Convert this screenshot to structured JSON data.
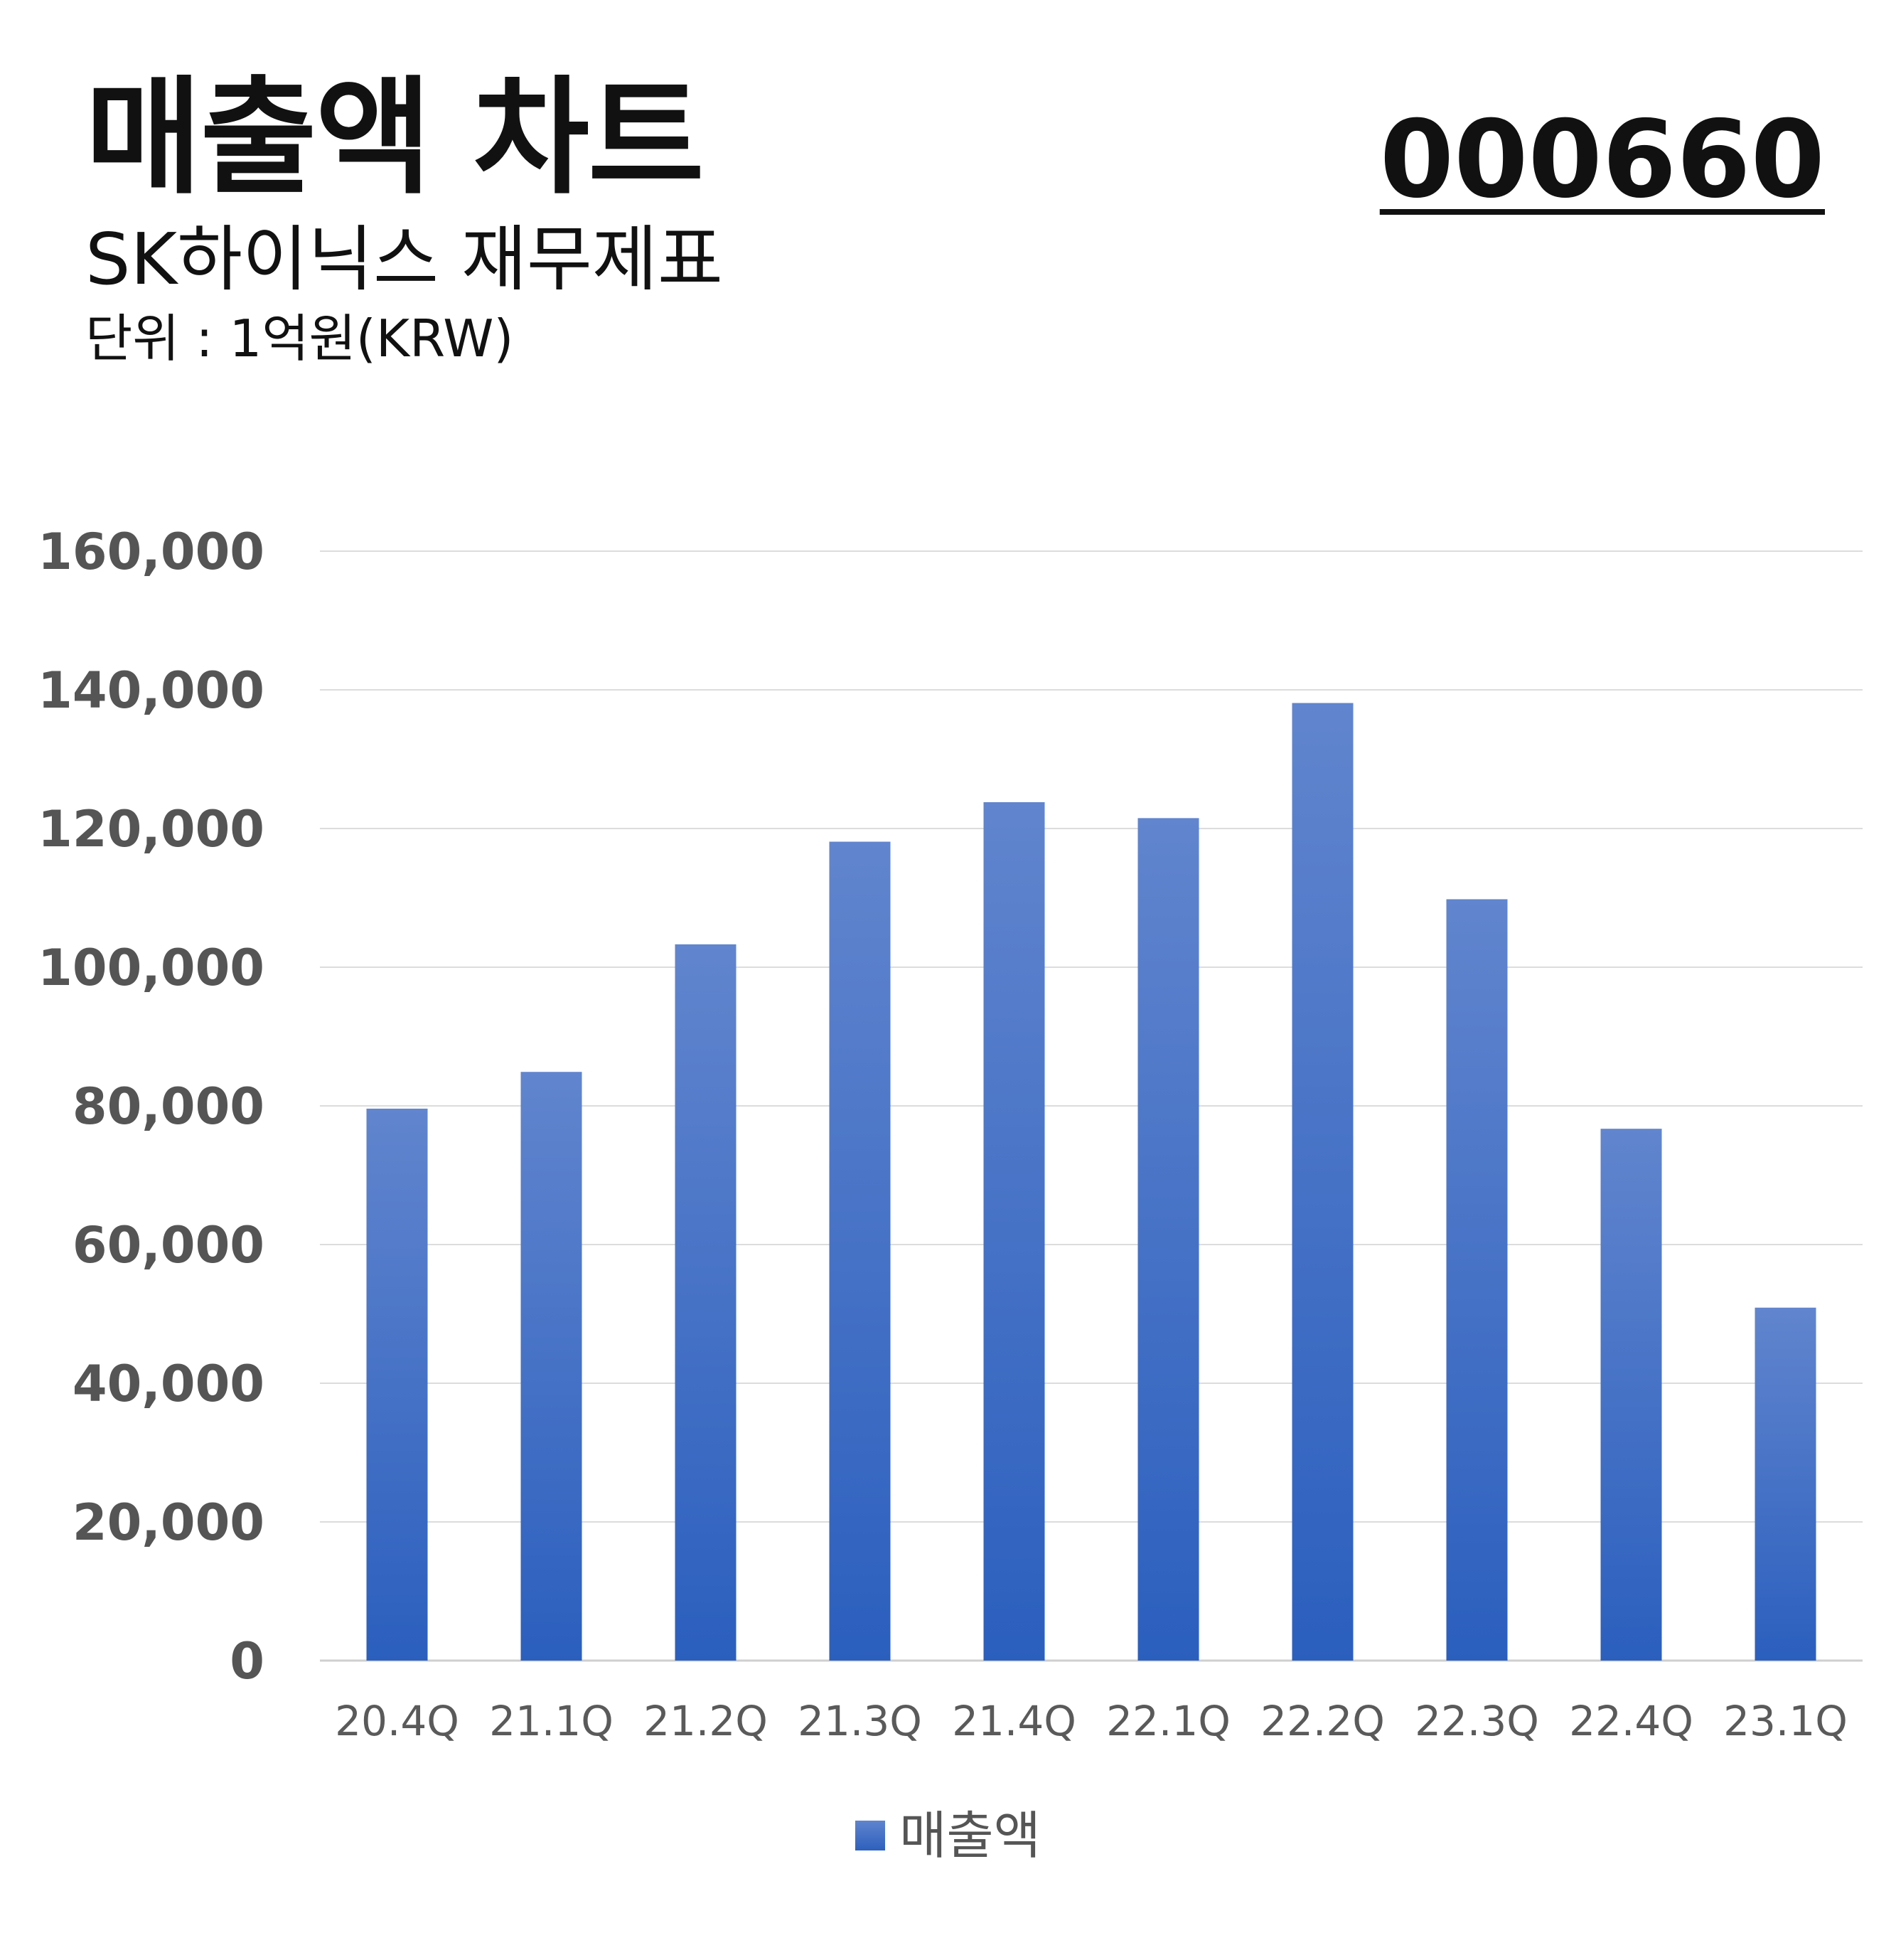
{
  "header": {
    "title": "매출액 차트",
    "subtitle": "SK하이닉스 재무제표",
    "unit": "단위 : 1억원(KRW)",
    "code": "000660"
  },
  "colors": {
    "bar_top": "#6185ce",
    "bar_bottom": "#2b5fbe",
    "gridline": "#dcdcdc",
    "axis_text": "#555555"
  },
  "chart_data": {
    "type": "bar",
    "categories": [
      "20.4Q",
      "21.1Q",
      "21.2Q",
      "21.3Q",
      "21.4Q",
      "22.1Q",
      "22.2Q",
      "22.3Q",
      "22.4Q",
      "23.1Q"
    ],
    "series": [
      {
        "name": "매출액",
        "values": [
          79600,
          84900,
          103300,
          118100,
          123800,
          121500,
          138100,
          109800,
          76700,
          50900
        ]
      }
    ],
    "ylim": [
      0,
      160000
    ],
    "yticks": [
      "0",
      "20,000",
      "40,000",
      "60,000",
      "80,000",
      "100,000",
      "120,000",
      "140,000",
      "160,000"
    ],
    "ytick_values": [
      0,
      20000,
      40000,
      60000,
      80000,
      100000,
      120000,
      140000,
      160000
    ],
    "grid": true,
    "legend": "bottom"
  }
}
